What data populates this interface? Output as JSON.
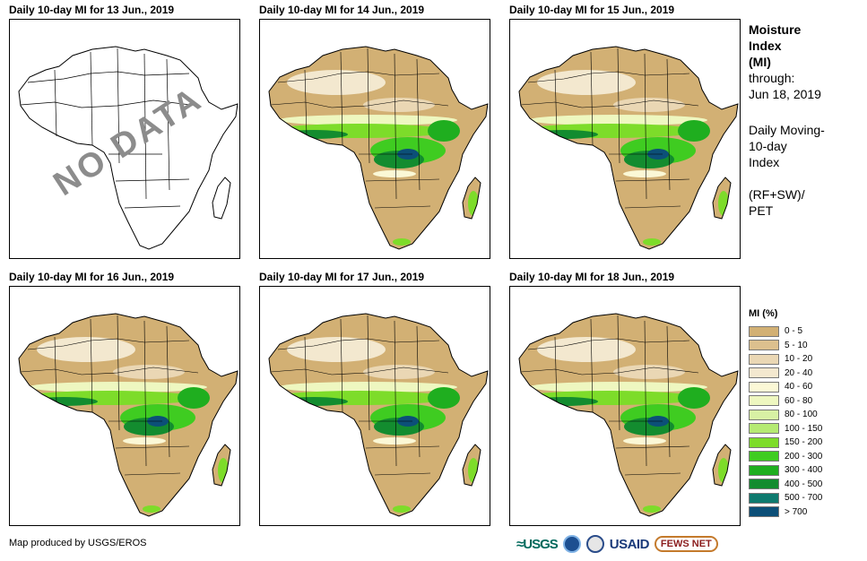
{
  "panels": [
    {
      "title": "Daily 10-day MI for 13 Jun., 2019",
      "has_data": false,
      "overlay": "NO DATA"
    },
    {
      "title": "Daily 10-day MI for 14 Jun., 2019",
      "has_data": true
    },
    {
      "title": "Daily 10-day MI for 15 Jun., 2019",
      "has_data": true
    },
    {
      "title": "Daily 10-day MI for 16 Jun., 2019",
      "has_data": true
    },
    {
      "title": "Daily 10-day MI for 17 Jun., 2019",
      "has_data": true
    },
    {
      "title": "Daily 10-day MI for 18 Jun., 2019",
      "has_data": true
    }
  ],
  "sidebar": {
    "title_line1": "Moisture",
    "title_line2": "Index",
    "title_line3": "(MI)",
    "through_label": "through:",
    "through_date": "Jun 18, 2019",
    "desc_line1": "Daily Moving-",
    "desc_line2": "10-day",
    "desc_line3": "Index",
    "formula_line1": "(RF+SW)/",
    "formula_line2": "PET"
  },
  "legend": {
    "title": "MI (%)",
    "items": [
      {
        "label": "0 - 5",
        "color": "#d2b074"
      },
      {
        "label": "5 - 10",
        "color": "#dcc08e"
      },
      {
        "label": "10 - 20",
        "color": "#ead7b4"
      },
      {
        "label": "20 - 40",
        "color": "#f3e8cf"
      },
      {
        "label": "40 - 60",
        "color": "#fbf8d6"
      },
      {
        "label": "60 - 80",
        "color": "#eef7c0"
      },
      {
        "label": "80 - 100",
        "color": "#d8f1a4"
      },
      {
        "label": "100 - 150",
        "color": "#b5ea73"
      },
      {
        "label": "150 - 200",
        "color": "#7ddc2a"
      },
      {
        "label": "200 - 300",
        "color": "#3fcc21"
      },
      {
        "label": "300 - 400",
        "color": "#1fae1f"
      },
      {
        "label": "400 - 500",
        "color": "#138c2f"
      },
      {
        "label": "500 - 700",
        "color": "#0e7a6e"
      },
      {
        "label": "> 700",
        "color": "#0c4f78"
      }
    ]
  },
  "footer": {
    "credit": "Map produced by USGS/EROS"
  },
  "logos": {
    "usgs": "≈USGS",
    "usaid": "USAID",
    "fews": "FEWS NET"
  }
}
